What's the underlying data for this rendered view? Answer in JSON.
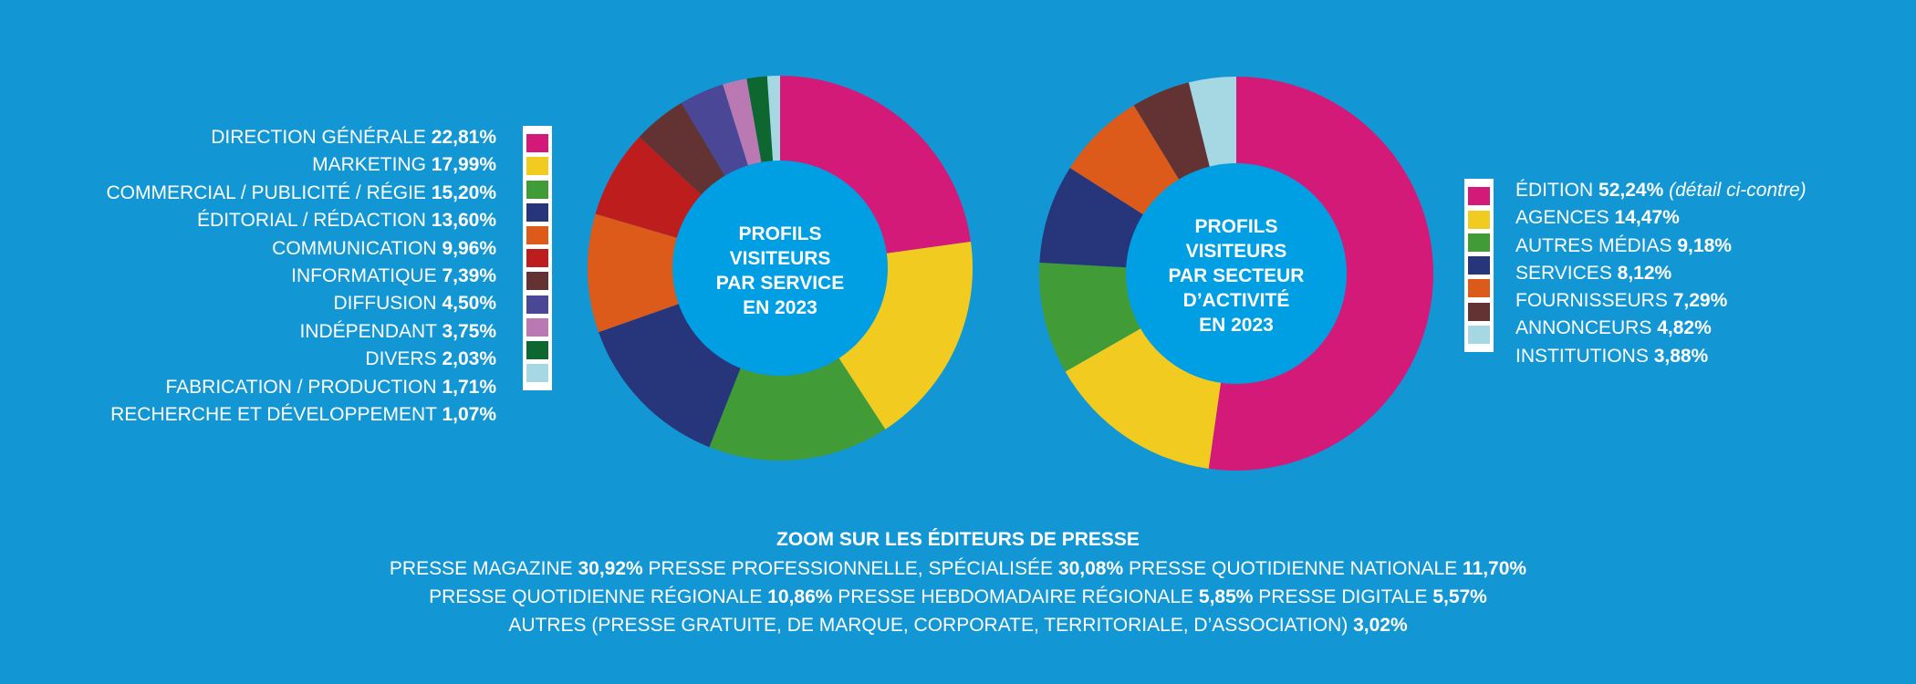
{
  "chart_data": [
    {
      "type": "pie",
      "title": "PROFILS VISITEURS PAR SERVICE EN 2023",
      "title_lines": [
        "PROFILS",
        "VISITEURS",
        "PAR SERVICE",
        "EN 2023"
      ],
      "categories": [
        "DIRECTION GÉNÉRALE",
        "MARKETING",
        "COMMERCIAL / PUBLICITÉ / RÉGIE",
        "ÉDITORIAL / RÉDACTION",
        "COMMUNICATION",
        "INFORMATIQUE",
        "DIFFUSION",
        "INDÉPENDANT",
        "DIVERS",
        "FABRICATION / PRODUCTION",
        "RECHERCHE ET DÉVELOPPEMENT"
      ],
      "values": [
        22.81,
        17.99,
        15.2,
        13.6,
        9.96,
        7.39,
        4.5,
        3.75,
        2.03,
        1.71,
        1.07
      ],
      "value_labels": [
        "22,81%",
        "17,99%",
        "15,20%",
        "13,60%",
        "9,96%",
        "7,39%",
        "4,50%",
        "3,75%",
        "2,03%",
        "1,71%",
        "1,07%"
      ],
      "colors": [
        "#d41a78",
        "#f2cb21",
        "#419b37",
        "#27357a",
        "#dc5b1a",
        "#be1d1d",
        "#633333",
        "#4a4796",
        "#ba79b2",
        "#0e6630",
        "#a6d8e3"
      ],
      "legend_position": "left"
    },
    {
      "type": "pie",
      "title": "PROFILS VISITEURS PAR SECTEUR D’ACTIVITÉ EN 2023",
      "title_lines": [
        "PROFILS",
        "VISITEURS",
        "PAR SECTEUR",
        "D’ACTIVITÉ",
        "EN 2023"
      ],
      "categories": [
        "ÉDITION",
        "AGENCES",
        "AUTRES MÉDIAS",
        "SERVICES",
        "FOURNISSEURS",
        "ANNONCEURS",
        "INSTITUTIONS"
      ],
      "values": [
        52.24,
        14.47,
        9.18,
        8.12,
        7.29,
        4.82,
        3.88
      ],
      "value_labels": [
        "52,24%",
        "14,47%",
        "9,18%",
        "8,12%",
        "7,29%",
        "4,82%",
        "3,88%"
      ],
      "notes": [
        "(détail ci-contre)",
        "",
        "",
        "",
        "",
        "",
        ""
      ],
      "colors": [
        "#d41a78",
        "#f2cb21",
        "#419b37",
        "#27357a",
        "#dc5b1a",
        "#633333",
        "#a6d8e3"
      ],
      "legend_position": "right"
    }
  ],
  "press": {
    "title": "ZOOM SUR LES ÉDITEURS DE PRESSE",
    "lines": [
      [
        {
          "label": "PRESSE MAGAZINE",
          "value": "30,92%"
        },
        {
          "label": "PRESSE PROFESSIONNELLE, SPÉCIALISÉE",
          "value": "30,08%"
        },
        {
          "label": "PRESSE QUOTIDIENNE NATIONALE",
          "value": "11,70%"
        }
      ],
      [
        {
          "label": "PRESSE QUOTIDIENNE RÉGIONALE",
          "value": "10,86%"
        },
        {
          "label": "PRESSE HEBDOMADAIRE RÉGIONALE",
          "value": "5,85%"
        },
        {
          "label": "PRESSE DIGITALE",
          "value": "5,57%"
        }
      ],
      [
        {
          "label": "AUTRES (PRESSE GRATUITE, DE MARQUE, CORPORATE, TERRITORIALE, D’ASSOCIATION)",
          "value": "3,02%"
        }
      ]
    ]
  },
  "colors": {
    "background": "#1397d4",
    "center": "#009fe3"
  }
}
